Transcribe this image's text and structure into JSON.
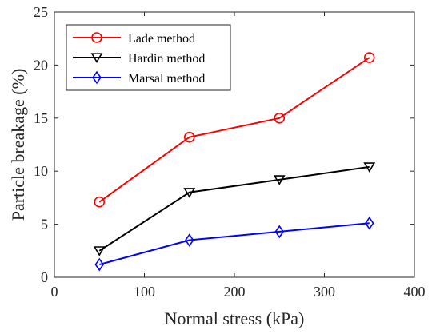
{
  "chart_data": {
    "type": "line",
    "title": "",
    "xlabel": "Normal stress (kPa)",
    "ylabel": "Particle breakage (%)",
    "xlim": [
      0,
      400
    ],
    "ylim": [
      0,
      25
    ],
    "x_ticks": [
      0,
      100,
      200,
      300,
      400
    ],
    "y_ticks": [
      0,
      5,
      10,
      15,
      20,
      25
    ],
    "grid": false,
    "legend_position": "top-left",
    "x": [
      50,
      150,
      250,
      350
    ],
    "series": [
      {
        "name": "Lade method",
        "color": "#ff0000",
        "marker": "circle",
        "values": [
          7.1,
          13.2,
          15.0,
          20.7
        ]
      },
      {
        "name": "Hardin method",
        "color": "#000000",
        "marker": "triangle-down",
        "values": [
          2.5,
          8.0,
          9.2,
          10.4
        ]
      },
      {
        "name": "Marsal method",
        "color": "#0000ff",
        "marker": "diamond",
        "values": [
          1.2,
          3.5,
          4.3,
          5.1
        ]
      }
    ]
  }
}
